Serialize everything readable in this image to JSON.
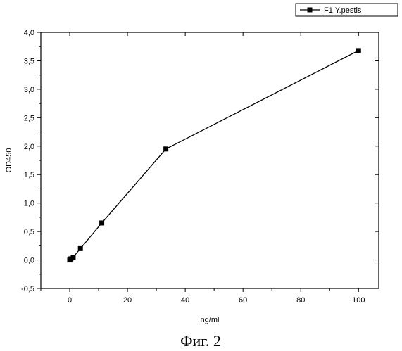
{
  "chart_data": {
    "type": "line",
    "title": "",
    "xlabel": "ng/ml",
    "ylabel": "OD450",
    "xlim": [
      -10,
      107
    ],
    "ylim": [
      -0.5,
      4.0
    ],
    "x_ticks": [
      0,
      20,
      40,
      60,
      80,
      100
    ],
    "x_tick_labels": [
      "0",
      "20",
      "40",
      "60",
      "80",
      "100"
    ],
    "y_ticks": [
      -0.5,
      0.0,
      0.5,
      1.0,
      1.5,
      2.0,
      2.5,
      3.0,
      3.5,
      4.0
    ],
    "y_tick_labels": [
      "-0,5",
      "0,0",
      "0,5",
      "1,0",
      "1,5",
      "2,0",
      "2,5",
      "3,0",
      "3,5",
      "4,0"
    ],
    "grid": false,
    "legend_position": "top-right",
    "series": [
      {
        "name": "F1 Y.pestis",
        "marker": "square",
        "color": "#000000",
        "x": [
          0,
          0.1,
          0.4,
          1.2,
          3.7,
          11.1,
          33.3,
          100
        ],
        "y": [
          0.0,
          0.01,
          0.02,
          0.05,
          0.2,
          0.65,
          1.95,
          3.68
        ]
      }
    ]
  },
  "caption": "Фиг. 2"
}
